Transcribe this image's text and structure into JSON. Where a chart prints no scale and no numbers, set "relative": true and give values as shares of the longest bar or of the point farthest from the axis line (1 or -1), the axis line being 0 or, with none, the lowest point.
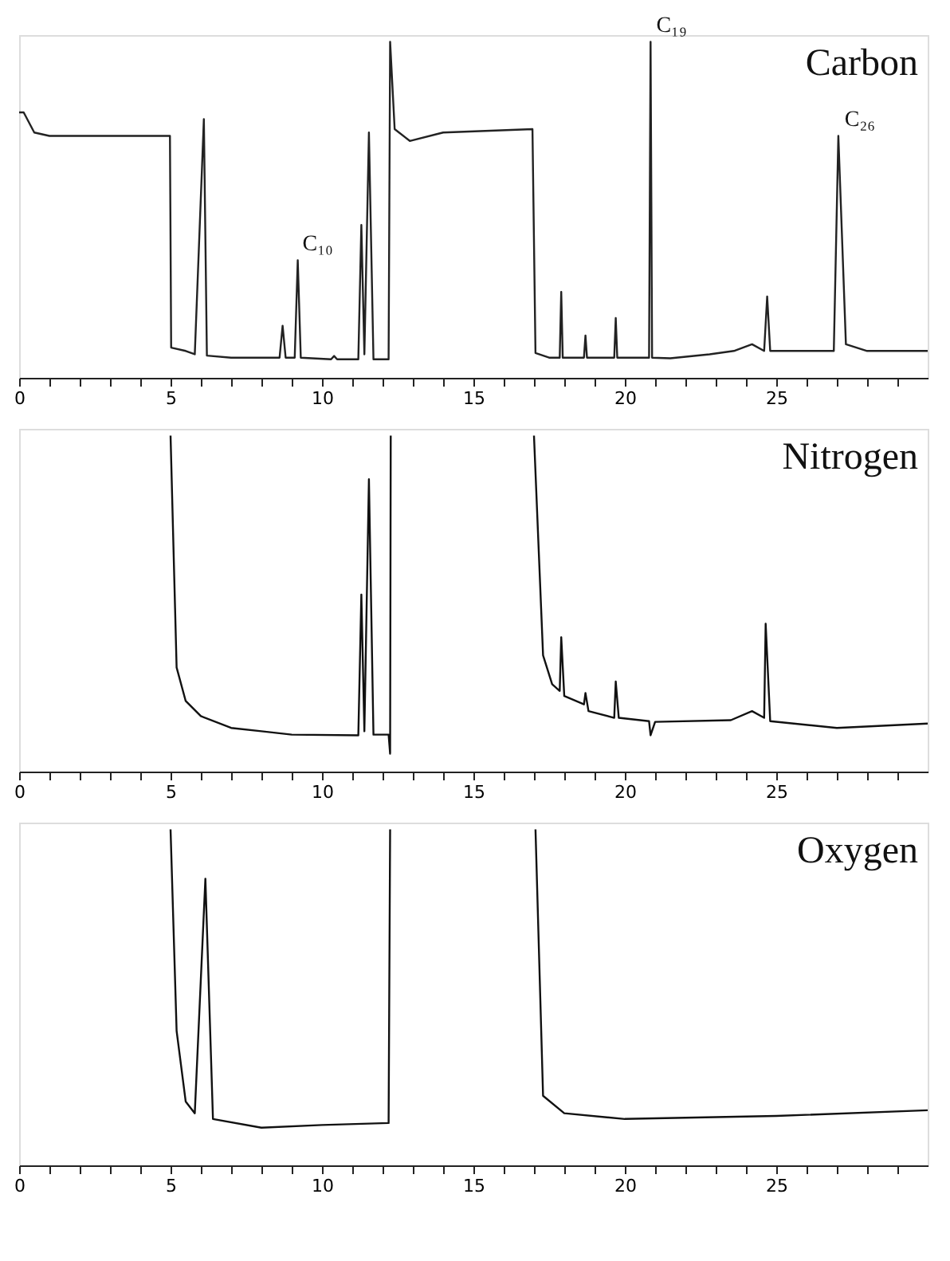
{
  "chart_data": [
    {
      "type": "line",
      "title": "Carbon",
      "relative": true,
      "xlim": [
        0,
        30
      ],
      "xticks": [
        0,
        {
          "value": 1,
          "label": null
        },
        {
          "value": 2,
          "label": null
        },
        {
          "value": 3,
          "label": null
        },
        {
          "value": 4,
          "label": null
        },
        5,
        {
          "value": 6,
          "label": null
        },
        {
          "value": 7,
          "label": null
        },
        {
          "value": 8,
          "label": null
        },
        {
          "value": 9,
          "label": null
        },
        10,
        {
          "value": 11,
          "label": null
        },
        {
          "value": 12,
          "label": null
        },
        {
          "value": 13,
          "label": null
        },
        {
          "value": 14,
          "label": null
        },
        15,
        {
          "value": 16,
          "label": null
        },
        {
          "value": 17,
          "label": null
        },
        {
          "value": 18,
          "label": null
        },
        {
          "value": 19,
          "label": null
        },
        20,
        {
          "value": 21,
          "label": null
        },
        {
          "value": 22,
          "label": null
        },
        {
          "value": 23,
          "label": null
        },
        {
          "value": 24,
          "label": null
        },
        25,
        {
          "value": 26,
          "label": null
        },
        {
          "value": 27,
          "label": null
        },
        {
          "value": 28,
          "label": null
        },
        {
          "value": 29,
          "label": null
        }
      ],
      "grid": false,
      "tick_labels": "x",
      "annotations": [
        {
          "text": "C₁₀",
          "x": 9.2,
          "y": 0.35
        },
        {
          "text": "C₁₉",
          "x": 20.88,
          "y": 1.0
        },
        {
          "text": "C₂₆",
          "x": 27.1,
          "y": 0.72
        }
      ],
      "series": [
        {
          "color": "#222222",
          "x": [
            0,
            0.15,
            0.5,
            1,
            2,
            4,
            4.98,
            5.02,
            5.5,
            5.8,
            6.1,
            6.2,
            7,
            8.6,
            8.7,
            8.8,
            9.1,
            9.2,
            9.3,
            10.3,
            10.4,
            10.5,
            11.2,
            11.3,
            11.4,
            11.55,
            11.7,
            12.2,
            12.25,
            12.4,
            12.9,
            14,
            16.95,
            17.05,
            17.5,
            17.85,
            17.9,
            17.95,
            18.65,
            18.7,
            18.75,
            19.65,
            19.7,
            19.75,
            20.8,
            20.85,
            20.9,
            21.5,
            22.8,
            23.6,
            24.2,
            24.6,
            24.7,
            24.8,
            26.9,
            27.05,
            27.3,
            28,
            30
          ],
          "values": [
            0.79,
            0.79,
            0.73,
            0.72,
            0.72,
            0.72,
            0.72,
            0.09,
            0.08,
            0.07,
            0.77,
            0.066,
            0.06,
            0.06,
            0.155,
            0.06,
            0.06,
            0.35,
            0.06,
            0.055,
            0.065,
            0.055,
            0.055,
            0.455,
            0.07,
            0.73,
            0.055,
            0.055,
            1.0,
            0.74,
            0.705,
            0.73,
            0.74,
            0.074,
            0.06,
            0.06,
            0.256,
            0.06,
            0.06,
            0.126,
            0.06,
            0.06,
            0.178,
            0.06,
            0.06,
            1.0,
            0.06,
            0.058,
            0.07,
            0.08,
            0.1,
            0.08,
            0.242,
            0.08,
            0.08,
            0.72,
            0.1,
            0.08,
            0.08
          ]
        }
      ]
    },
    {
      "type": "line",
      "title": "Nitrogen",
      "relative": true,
      "xlim": [
        0,
        30
      ],
      "xticks": [
        0,
        {
          "value": 1,
          "label": null
        },
        {
          "value": 2,
          "label": null
        },
        {
          "value": 3,
          "label": null
        },
        {
          "value": 4,
          "label": null
        },
        5,
        {
          "value": 6,
          "label": null
        },
        {
          "value": 7,
          "label": null
        },
        {
          "value": 8,
          "label": null
        },
        {
          "value": 9,
          "label": null
        },
        10,
        {
          "value": 11,
          "label": null
        },
        {
          "value": 12,
          "label": null
        },
        {
          "value": 13,
          "label": null
        },
        {
          "value": 14,
          "label": null
        },
        15,
        {
          "value": 16,
          "label": null
        },
        {
          "value": 17,
          "label": null
        },
        {
          "value": 18,
          "label": null
        },
        {
          "value": 19,
          "label": null
        },
        20,
        {
          "value": 21,
          "label": null
        },
        {
          "value": 22,
          "label": null
        },
        {
          "value": 23,
          "label": null
        },
        {
          "value": 24,
          "label": null
        },
        25,
        {
          "value": 26,
          "label": null
        },
        {
          "value": 27,
          "label": null
        },
        {
          "value": 28,
          "label": null
        },
        {
          "value": 29,
          "label": null
        }
      ],
      "grid": false,
      "tick_labels": "x",
      "series": [
        {
          "color": "#111111",
          "x": [
            5,
            5.2,
            5.5,
            6,
            7,
            8,
            9,
            11.2,
            11.3,
            11.4,
            11.55,
            11.7,
            12.2,
            12.25,
            12.27,
            14,
            17,
            17.3,
            17.6,
            17.85,
            17.9,
            18,
            18.65,
            18.7,
            18.8,
            19.65,
            19.7,
            19.8,
            20.8,
            20.85,
            21,
            23.5,
            24.2,
            24.6,
            24.65,
            24.8,
            27,
            30
          ],
          "values": [
            1.0,
            0.31,
            0.21,
            0.165,
            0.13,
            0.12,
            0.11,
            0.108,
            0.527,
            0.12,
            0.87,
            0.11,
            0.11,
            0.053,
            1.0,
            null,
            1.0,
            0.346,
            0.26,
            0.24,
            0.4,
            0.225,
            0.2,
            0.234,
            0.18,
            0.16,
            0.268,
            0.16,
            0.15,
            0.108,
            0.148,
            0.153,
            0.18,
            0.16,
            0.44,
            0.15,
            0.13,
            0.143
          ]
        }
      ]
    },
    {
      "type": "line",
      "title": "Oxygen",
      "relative": true,
      "xlim": [
        0,
        30
      ],
      "xticks": [
        0,
        {
          "value": 1,
          "label": null
        },
        {
          "value": 2,
          "label": null
        },
        {
          "value": 3,
          "label": null
        },
        {
          "value": 4,
          "label": null
        },
        5,
        {
          "value": 6,
          "label": null
        },
        {
          "value": 7,
          "label": null
        },
        {
          "value": 8,
          "label": null
        },
        {
          "value": 9,
          "label": null
        },
        10,
        {
          "value": 11,
          "label": null
        },
        {
          "value": 12,
          "label": null
        },
        {
          "value": 13,
          "label": null
        },
        {
          "value": 14,
          "label": null
        },
        15,
        {
          "value": 16,
          "label": null
        },
        {
          "value": 17,
          "label": null
        },
        {
          "value": 18,
          "label": null
        },
        {
          "value": 19,
          "label": null
        },
        20,
        {
          "value": 21,
          "label": null
        },
        {
          "value": 22,
          "label": null
        },
        {
          "value": 23,
          "label": null
        },
        {
          "value": 24,
          "label": null
        },
        25,
        {
          "value": 26,
          "label": null
        },
        {
          "value": 27,
          "label": null
        },
        {
          "value": 28,
          "label": null
        },
        {
          "value": 29,
          "label": null
        }
      ],
      "grid": false,
      "tick_labels": "x",
      "series": [
        {
          "color": "#111111",
          "x": [
            5,
            5.2,
            5.5,
            5.8,
            6.15,
            6.4,
            8,
            10,
            12.2,
            12.25,
            14,
            17.05,
            17.3,
            18,
            20,
            25,
            30
          ],
          "values": [
            1.0,
            0.4,
            0.19,
            0.155,
            0.853,
            0.138,
            0.112,
            0.12,
            0.126,
            1.0,
            null,
            1.0,
            0.207,
            0.155,
            0.138,
            0.147,
            0.164
          ]
        }
      ]
    }
  ]
}
